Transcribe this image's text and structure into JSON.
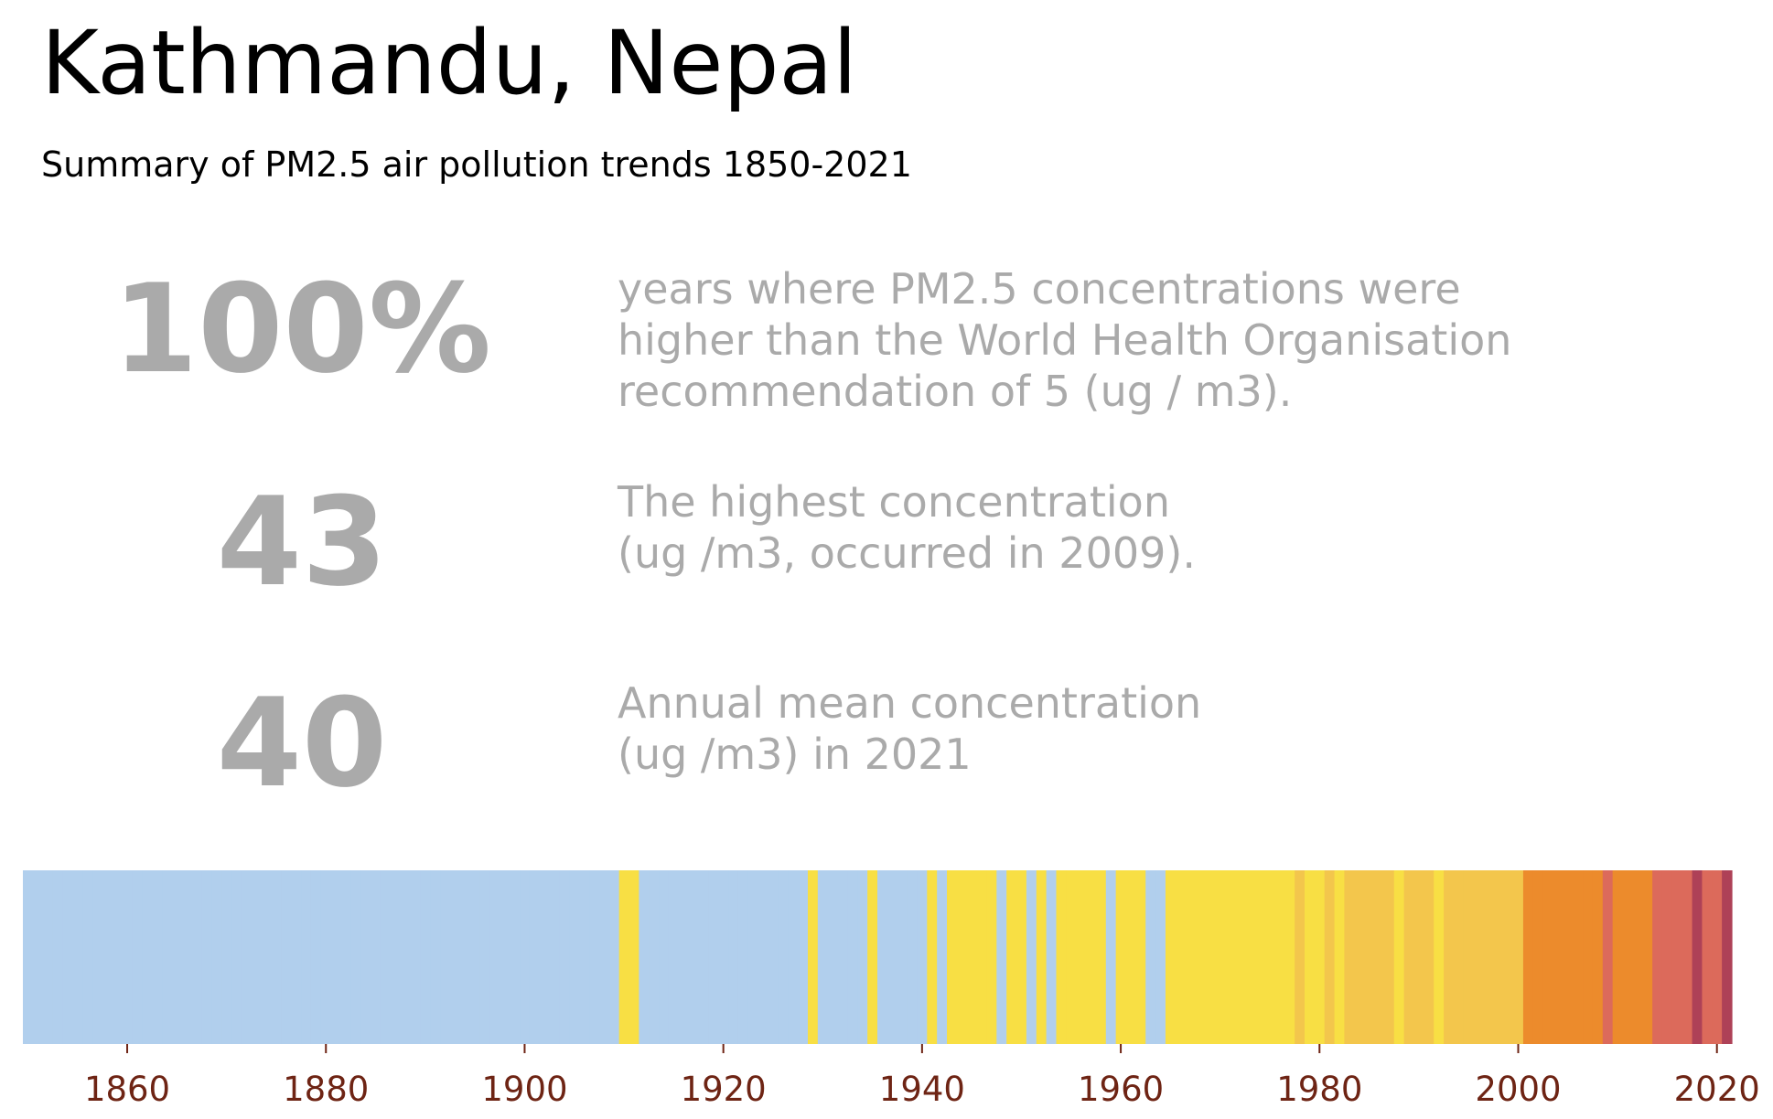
{
  "title": "Kathmandu, Nepal",
  "subtitle": "Summary of PM2.5 air pollution trends 1850-2021",
  "stats": [
    {
      "value": "100%",
      "lines": [
        "years where PM2.5 concentrations were",
        "higher than the World Health Organisation",
        "recommendation of 5 (ug / m3)."
      ]
    },
    {
      "value": "43",
      "lines": [
        "The highest concentration",
        "(ug /m3, occurred in 2009)."
      ]
    },
    {
      "value": "40",
      "lines": [
        "Annual mean concentration",
        "(ug /m3) in 2021"
      ]
    }
  ],
  "colors": {
    "light_blue": "#b1cfed",
    "yellow": "#f8df44",
    "gold": "#f3c64c",
    "orange": "#ec8b2c",
    "salmon": "#dc6a5b",
    "dark_red": "#ae4157",
    "stat_text": "#aaaaaa",
    "tick_label": "#6e2414"
  },
  "chart_data": {
    "type": "heatmap",
    "x_start": 1850,
    "x_end": 2021,
    "xticks": [
      1860,
      1880,
      1900,
      1920,
      1940,
      1960,
      1980,
      2000,
      2020
    ],
    "grid": false,
    "legend": "none",
    "color_bins": [
      "light_blue",
      "yellow",
      "gold",
      "orange",
      "salmon",
      "dark_red"
    ],
    "year_bins": [
      0,
      0,
      0,
      0,
      0,
      0,
      0,
      0,
      0,
      0,
      0,
      0,
      0,
      0,
      0,
      0,
      0,
      0,
      0,
      0,
      0,
      0,
      0,
      0,
      0,
      0,
      0,
      0,
      0,
      0,
      0,
      0,
      0,
      0,
      0,
      0,
      0,
      0,
      0,
      0,
      0,
      0,
      0,
      0,
      0,
      0,
      0,
      0,
      0,
      0,
      0,
      0,
      0,
      0,
      0,
      0,
      0,
      0,
      0,
      0,
      1,
      1,
      0,
      0,
      0,
      0,
      0,
      0,
      0,
      0,
      0,
      0,
      0,
      0,
      0,
      0,
      0,
      0,
      0,
      1,
      0,
      0,
      0,
      0,
      0,
      1,
      0,
      0,
      0,
      0,
      0,
      1,
      0,
      1,
      1,
      1,
      1,
      1,
      0,
      1,
      1,
      0,
      1,
      0,
      1,
      1,
      1,
      1,
      1,
      0,
      1,
      1,
      1,
      0,
      0,
      1,
      1,
      1,
      1,
      1,
      1,
      1,
      1,
      1,
      1,
      1,
      1,
      1,
      2,
      1,
      1,
      2,
      1,
      2,
      2,
      2,
      2,
      2,
      1,
      2,
      2,
      2,
      1,
      2,
      2,
      2,
      2,
      2,
      2,
      2,
      2,
      3,
      3,
      3,
      3,
      3,
      3,
      3,
      3,
      4,
      3,
      3,
      3,
      3,
      4,
      4,
      4,
      4,
      5,
      4,
      4,
      5
    ]
  }
}
